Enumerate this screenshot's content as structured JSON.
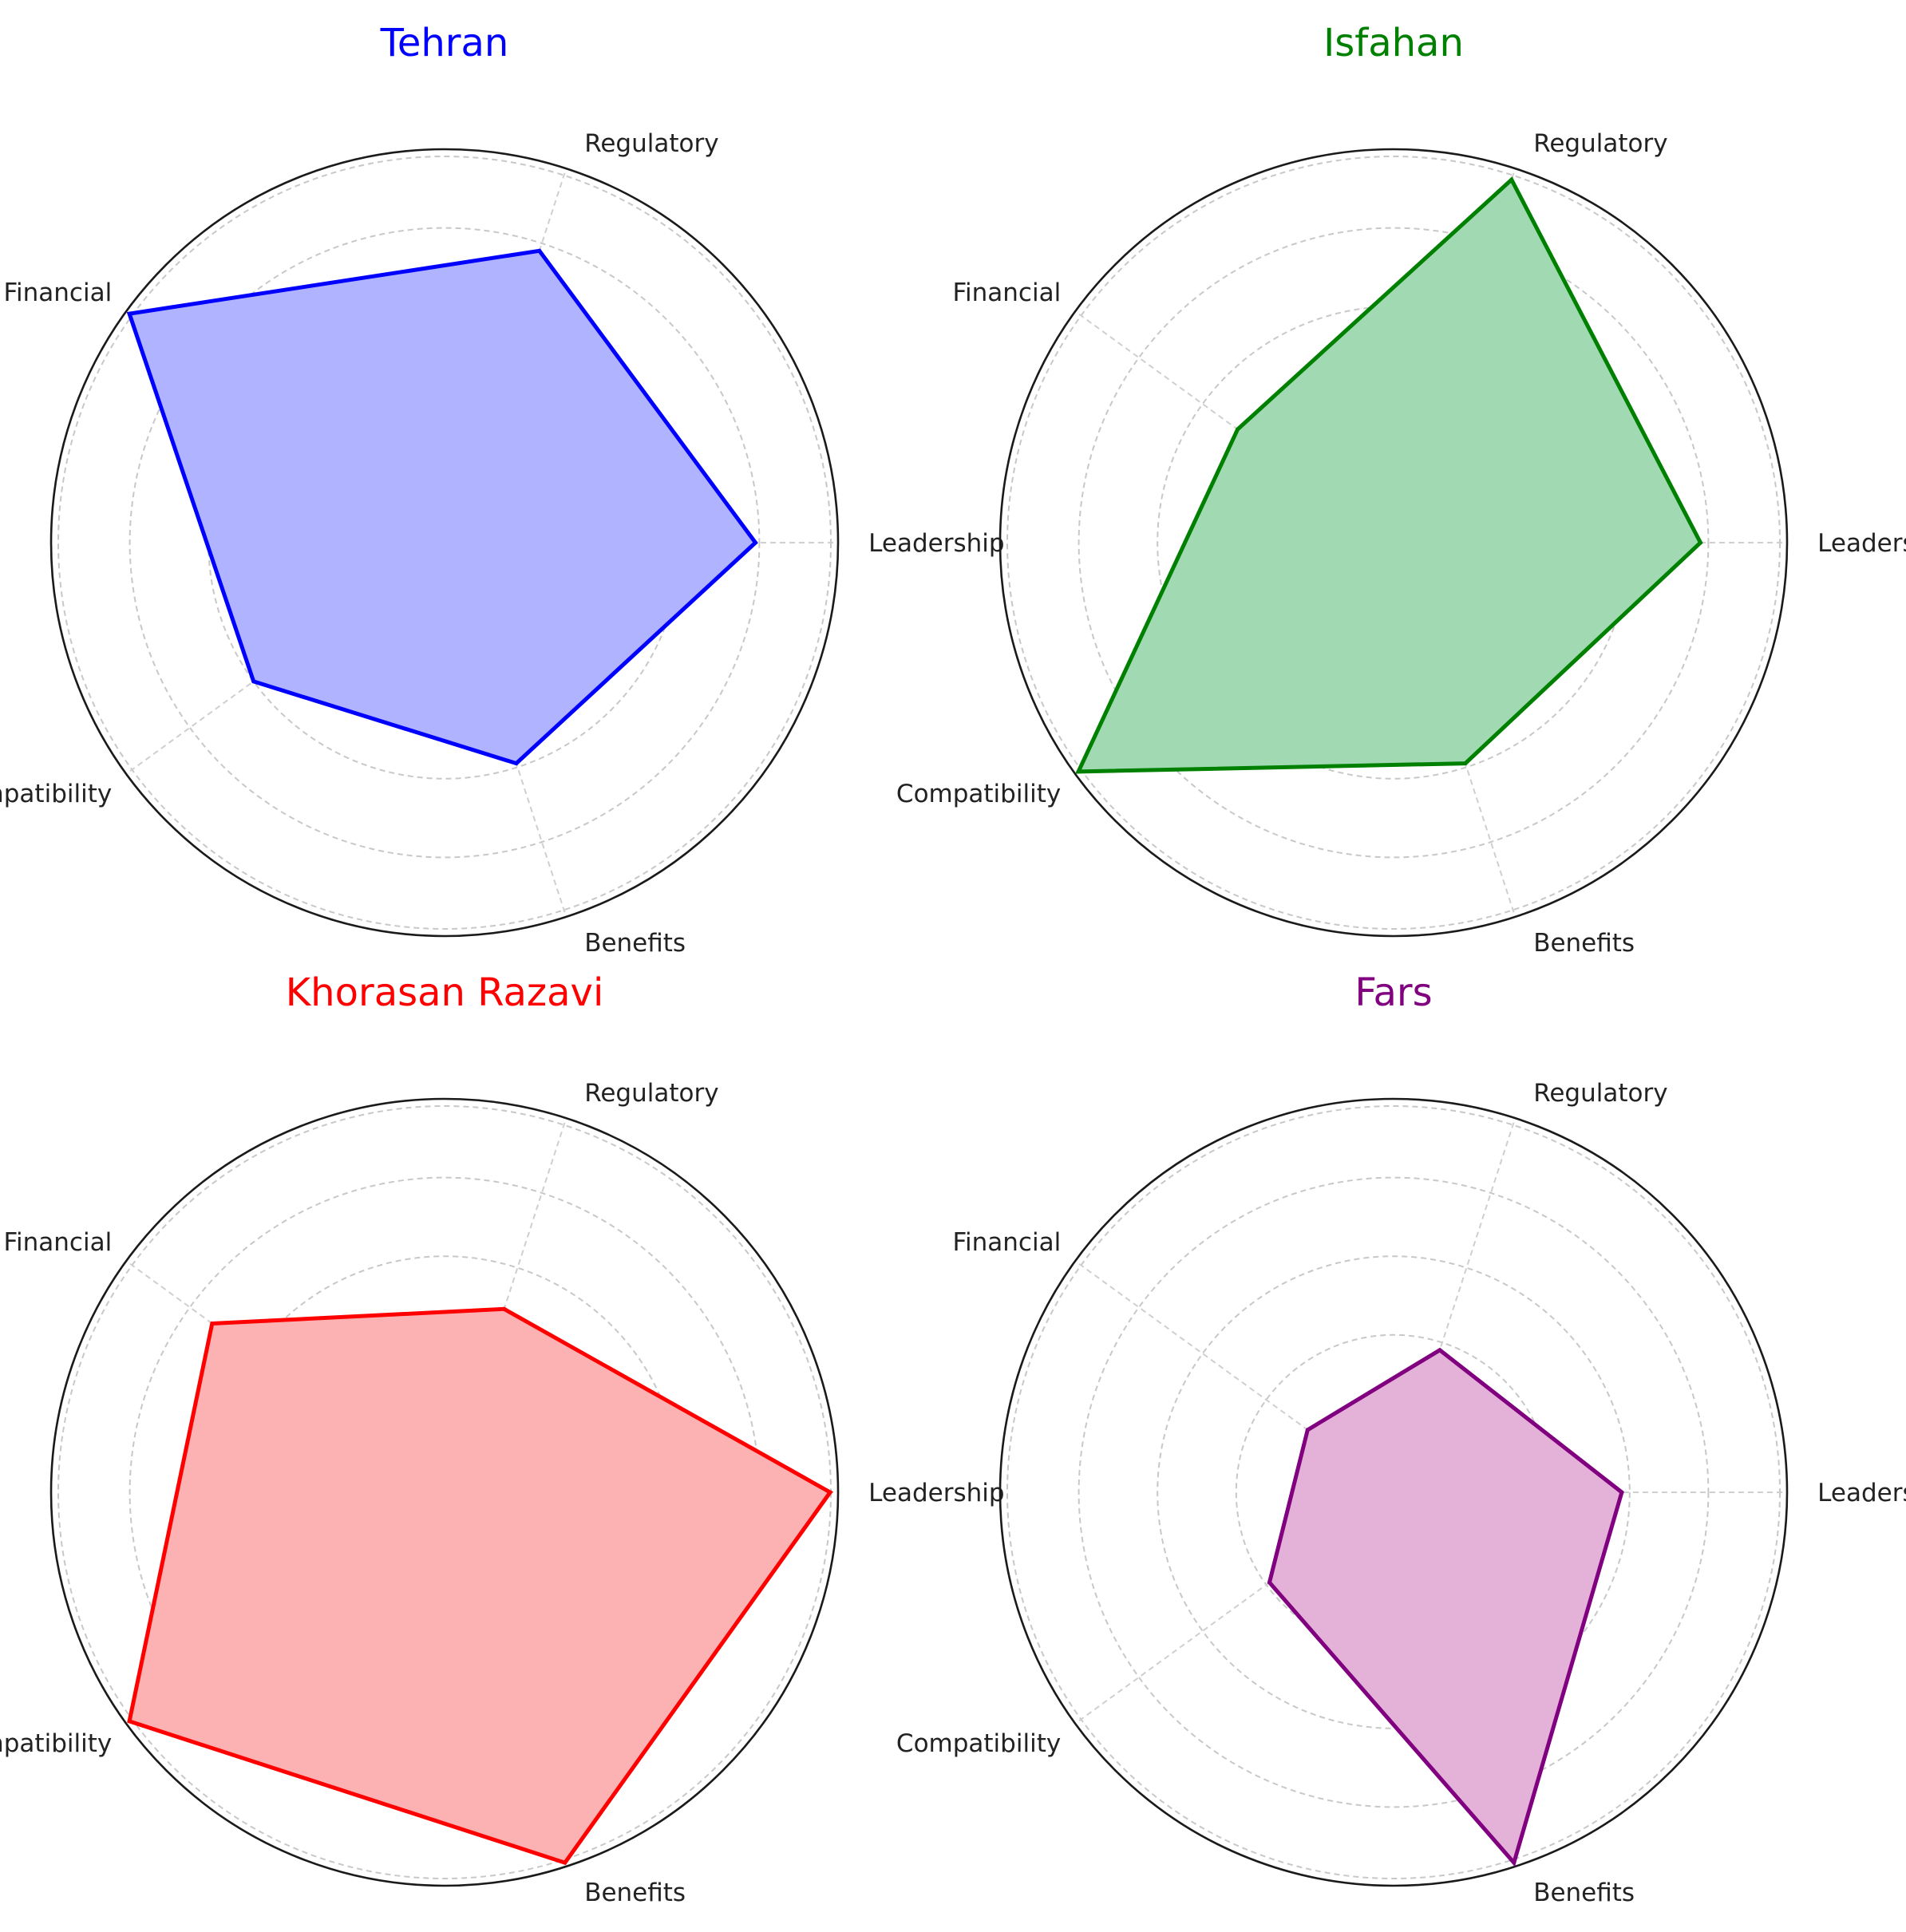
{
  "chart_data": [
    {
      "type": "radar",
      "title": "Tehran",
      "title_color": "#0000ff",
      "fill_color": "#b0b3ff",
      "categories": [
        "Leadership",
        "Regulatory",
        "Financial",
        "Compatibility",
        "Benefits"
      ],
      "values": [
        0.79,
        0.78,
        0.99,
        0.6,
        0.59
      ],
      "rlim": [
        0,
        1
      ],
      "grid": true
    },
    {
      "type": "radar",
      "title": "Isfahan",
      "title_color": "#008000",
      "fill_color": "#a1dab2",
      "categories": [
        "Leadership",
        "Regulatory",
        "Financial",
        "Compatibility",
        "Benefits"
      ],
      "values": [
        0.78,
        0.97,
        0.49,
        0.99,
        0.59
      ],
      "rlim": [
        0,
        1
      ],
      "grid": true
    },
    {
      "type": "radar",
      "title": "Khorasan Razavi",
      "title_color": "#ff0000",
      "fill_color": "#fcb2b3",
      "categories": [
        "Leadership",
        "Regulatory",
        "Financial",
        "Compatibility",
        "Benefits"
      ],
      "values": [
        0.98,
        0.49,
        0.73,
        0.99,
        0.99
      ],
      "rlim": [
        0,
        1
      ],
      "grid": true
    },
    {
      "type": "radar",
      "title": "Fars",
      "title_color": "#800080",
      "fill_color": "#e4b2d8",
      "categories": [
        "Leadership",
        "Regulatory",
        "Financial",
        "Compatibility",
        "Benefits"
      ],
      "values": [
        0.58,
        0.38,
        0.27,
        0.39,
        0.99
      ],
      "rlim": [
        0,
        1
      ],
      "grid": true
    }
  ]
}
